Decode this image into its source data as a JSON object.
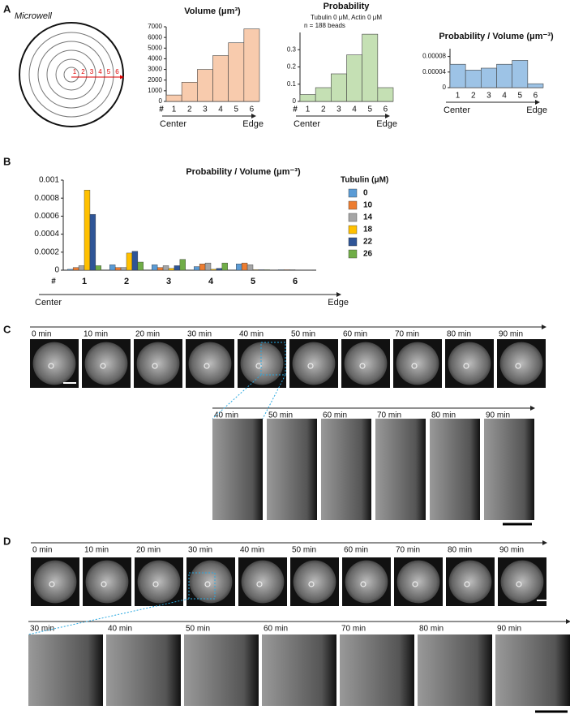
{
  "panel_labels": [
    "A",
    "B",
    "C",
    "D"
  ],
  "microwell": {
    "title": "Microwell",
    "ring_labels": [
      "1",
      "2",
      "3",
      "4",
      "5",
      "6"
    ]
  },
  "chart_data": [
    {
      "type": "bar",
      "title": "Volume (μm³)",
      "categories": [
        "1",
        "2",
        "3",
        "4",
        "5",
        "6"
      ],
      "values": [
        600,
        1800,
        3000,
        4300,
        5500,
        6800
      ],
      "color": "#f8cbad",
      "ylim": [
        0,
        7000
      ],
      "yticks": [
        0,
        1000,
        2000,
        3000,
        4000,
        5000,
        6000,
        7000
      ],
      "category_prefix": "#",
      "x_start_label": "Center",
      "x_end_label": "Edge"
    },
    {
      "type": "bar",
      "title": "Probability",
      "subtitle": "Tubulin 0 μM, Actin 0 μM",
      "annotation": "n = 188 beads",
      "categories": [
        "1",
        "2",
        "3",
        "4",
        "5",
        "6"
      ],
      "values": [
        0.04,
        0.08,
        0.16,
        0.27,
        0.39,
        0.08
      ],
      "color": "#c5e0b4",
      "ylim": [
        0,
        0.4
      ],
      "yticks": [
        0,
        0.1,
        0.2,
        0.3
      ],
      "category_prefix": "#",
      "x_start_label": "Center",
      "x_end_label": "Edge"
    },
    {
      "type": "bar",
      "title": "Probability / Volume (μm⁻³)",
      "categories": [
        "1",
        "2",
        "3",
        "4",
        "5",
        "6"
      ],
      "values": [
        6e-05,
        4.5e-05,
        5e-05,
        6e-05,
        7e-05,
        1e-05
      ],
      "color": "#9dc3e6",
      "ylim": [
        0,
        0.0001
      ],
      "yticks": [
        0,
        4e-05,
        8e-05
      ],
      "x_start_label": "Center",
      "x_end_label": "Edge"
    },
    {
      "type": "grouped-bar",
      "title": "Probability / Volume (μm⁻³)",
      "categories": [
        "1",
        "2",
        "3",
        "4",
        "5",
        "6"
      ],
      "legend_title": "Tubulin (μM)",
      "series": [
        {
          "name": "0",
          "color": "#5b9bd5",
          "values": [
            1e-05,
            6e-05,
            6e-05,
            4e-05,
            7e-05,
            5e-06
          ]
        },
        {
          "name": "10",
          "color": "#ed7d31",
          "values": [
            3e-05,
            3e-05,
            3e-05,
            7e-05,
            8e-05,
            5e-06
          ]
        },
        {
          "name": "14",
          "color": "#a5a5a5",
          "values": [
            5e-05,
            3e-05,
            5e-05,
            8e-05,
            6e-05,
            5e-06
          ]
        },
        {
          "name": "18",
          "color": "#ffc000",
          "values": [
            0.00089,
            0.00019,
            2e-05,
            1e-05,
            5e-06,
            3e-06
          ]
        },
        {
          "name": "22",
          "color": "#2f5597",
          "values": [
            0.00062,
            0.00021,
            5e-05,
            2e-05,
            5e-06,
            3e-06
          ]
        },
        {
          "name": "26",
          "color": "#70ad47",
          "values": [
            5e-05,
            9e-05,
            0.00012,
            8e-05,
            5e-06,
            3e-06
          ]
        }
      ],
      "ylim": [
        0,
        0.001
      ],
      "yticks": [
        0,
        0.0002,
        0.0004,
        0.0006,
        0.0008,
        0.001
      ],
      "category_prefix": "#",
      "x_start_label": "Center",
      "x_end_label": "Edge"
    }
  ],
  "panel_c": {
    "times": [
      "0 min",
      "10 min",
      "20 min",
      "30 min",
      "40 min",
      "50 min",
      "60 min",
      "70 min",
      "80 min",
      "90 min"
    ],
    "zoom_times": [
      "40 min",
      "50 min",
      "60 min",
      "70 min",
      "80 min",
      "90 min"
    ]
  },
  "panel_d": {
    "times": [
      "0 min",
      "10 min",
      "20 min",
      "30 min",
      "40 min",
      "50 min",
      "60 min",
      "70 min",
      "80 min",
      "90 min"
    ],
    "zoom_times": [
      "30 min",
      "40 min",
      "50 min",
      "60 min",
      "70 min",
      "80 min",
      "90 min"
    ]
  }
}
